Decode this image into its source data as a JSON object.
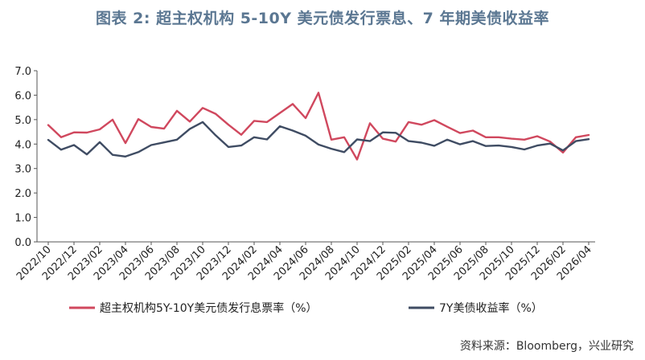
{
  "chart_data": {
    "type": "line",
    "title": "图表 2: 超主权机构 5-10Y 美元债发行票息、7 年期美债收益率",
    "source": "资料来源：Bloomberg，兴业研究",
    "xlabel": "",
    "ylabel": "",
    "ylim": [
      0,
      7
    ],
    "yticks": [
      "0.0",
      "1.0",
      "2.0",
      "3.0",
      "4.0",
      "5.0",
      "6.0",
      "7.0"
    ],
    "xticks": [
      "2022/10",
      "2022/12",
      "2023/02",
      "2023/04",
      "2023/06",
      "2023/08",
      "2023/10",
      "2023/12",
      "2024/02",
      "2024/04",
      "2024/06",
      "2024/08",
      "2024/10",
      "2024/12",
      "2025/02",
      "2025/04",
      "2025/06",
      "2025/08",
      "2025/10",
      "2025/12",
      "2026/02",
      "2026/04"
    ],
    "x": [
      "2022/10",
      "2022/11",
      "2022/12",
      "2023/01",
      "2023/02",
      "2023/03",
      "2023/04",
      "2023/05",
      "2023/06",
      "2023/07",
      "2023/08",
      "2023/09",
      "2023/10",
      "2023/11",
      "2023/12",
      "2024/01",
      "2024/02",
      "2024/03",
      "2024/04",
      "2024/05",
      "2024/06",
      "2024/07",
      "2024/08",
      "2024/09",
      "2024/10",
      "2024/11",
      "2024/12",
      "2025/01",
      "2025/02",
      "2025/03",
      "2025/04",
      "2025/05",
      "2025/06",
      "2025/07",
      "2025/08",
      "2025/09",
      "2025/10",
      "2025/11",
      "2025/12",
      "2026/01",
      "2026/02",
      "2026/03",
      "2026/04"
    ],
    "legend_position": "bottom",
    "grid": false,
    "series": [
      {
        "name": "超主权机构5Y-10Y美元债发行息票率（%）",
        "color": "#d0485e",
        "values": [
          4.78,
          4.28,
          4.48,
          4.47,
          4.6,
          5.0,
          4.04,
          5.02,
          4.7,
          4.63,
          5.36,
          4.92,
          5.48,
          5.24,
          4.79,
          4.38,
          4.95,
          4.9,
          5.27,
          5.64,
          5.06,
          6.1,
          4.18,
          4.28,
          3.37,
          4.85,
          4.22,
          4.1,
          4.9,
          4.79,
          4.98,
          4.71,
          4.45,
          4.55,
          4.28,
          4.28,
          4.22,
          4.18,
          4.32,
          4.1,
          3.65,
          4.28,
          4.37
        ]
      },
      {
        "name": "7Y美债收益率（%）",
        "color": "#3f4c63",
        "values": [
          4.17,
          3.77,
          3.96,
          3.58,
          4.08,
          3.56,
          3.49,
          3.67,
          3.96,
          4.07,
          4.18,
          4.62,
          4.9,
          4.36,
          3.88,
          3.94,
          4.28,
          4.19,
          4.73,
          4.55,
          4.34,
          3.98,
          3.81,
          3.67,
          4.19,
          4.12,
          4.48,
          4.46,
          4.12,
          4.06,
          3.93,
          4.18,
          3.99,
          4.12,
          3.92,
          3.94,
          3.88,
          3.78,
          3.94,
          4.02,
          3.74,
          4.12,
          4.2
        ]
      }
    ]
  }
}
